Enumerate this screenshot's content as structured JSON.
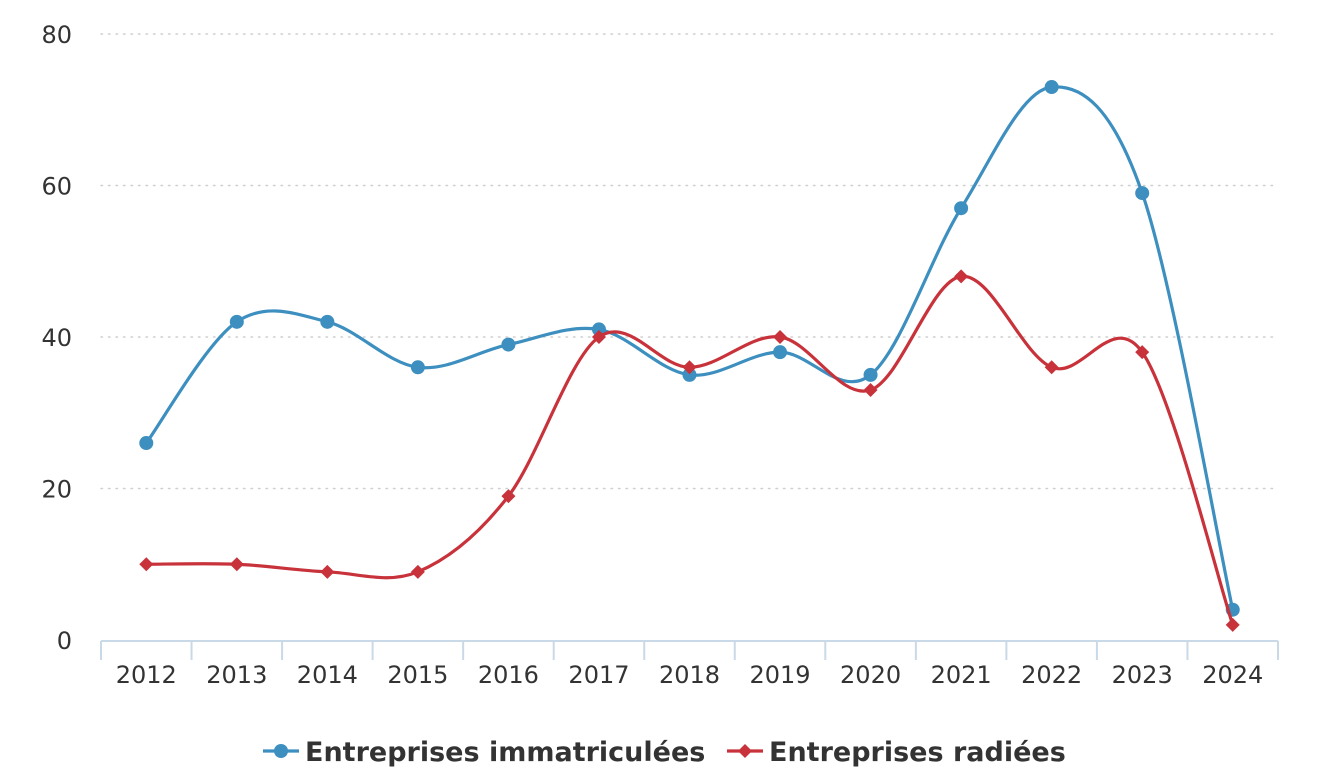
{
  "chart_data": {
    "type": "line",
    "title": "",
    "xlabel": "",
    "ylabel": "",
    "categories": [
      "2012",
      "2013",
      "2014",
      "2015",
      "2016",
      "2017",
      "2018",
      "2019",
      "2020",
      "2021",
      "2022",
      "2023",
      "2024"
    ],
    "ylim": [
      0,
      80
    ],
    "yticks": [
      0,
      20,
      40,
      60,
      80
    ],
    "grid": true,
    "legend_position": "bottom-center",
    "series": [
      {
        "name": "Entreprises immatriculées",
        "color": "#3d8fc0",
        "marker": "circle",
        "values": [
          26,
          42,
          42,
          36,
          39,
          41,
          35,
          38,
          35,
          57,
          73,
          59,
          4
        ]
      },
      {
        "name": "Entreprises radiées",
        "color": "#c8323a",
        "marker": "diamond",
        "values": [
          10,
          10,
          9,
          9,
          19,
          40,
          36,
          40,
          33,
          48,
          36,
          38,
          2
        ]
      }
    ]
  }
}
